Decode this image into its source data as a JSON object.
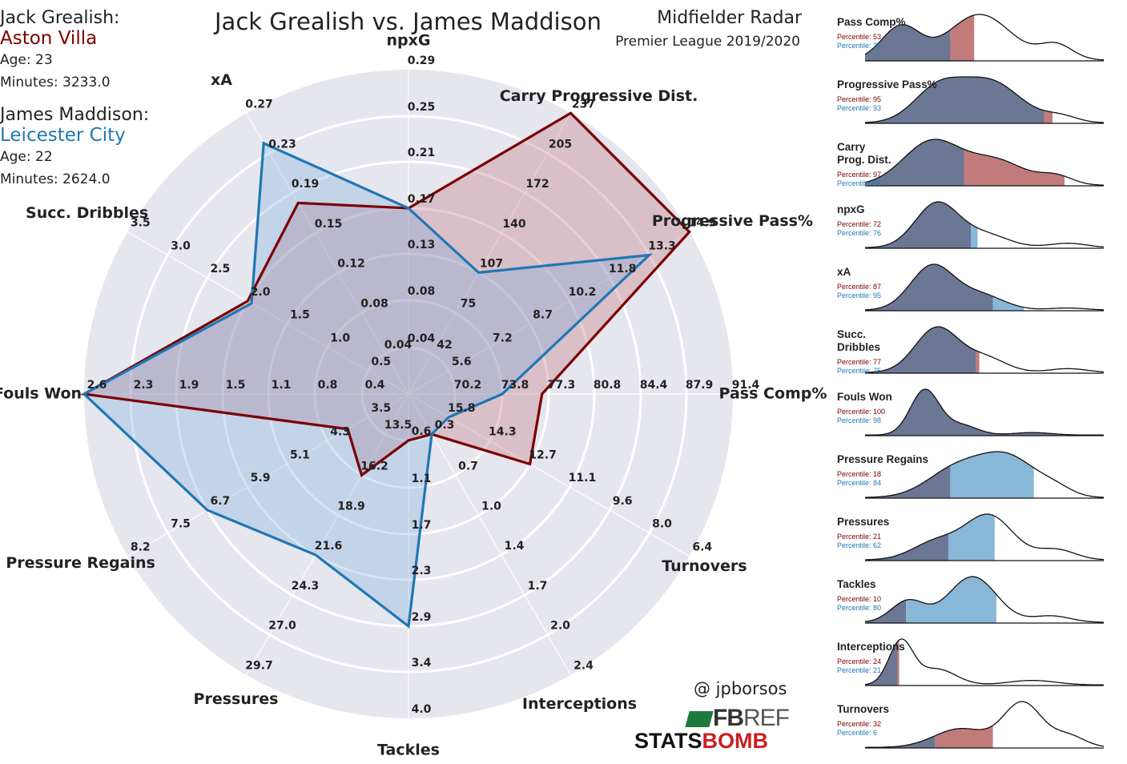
{
  "title": "Jack Grealish vs. James Maddison",
  "subtitle": "Midfielder Radar",
  "competition": "Premier League 2019/2020",
  "credit": "@ jpborsos",
  "logos": {
    "fbref_a": "FB",
    "fbref_b": "REF",
    "statsbomb_a": "STATS",
    "statsbomb_b": "BOMB"
  },
  "players": [
    {
      "name": "Jack Grealish:",
      "club": "Aston Villa",
      "age": "Age: 23",
      "minutes": "Minutes: 3233.0",
      "color": "#7b0000"
    },
    {
      "name": "James Maddison:",
      "club": "Leicester City",
      "age": "Age: 22",
      "minutes": "Minutes: 2624.0",
      "color": "#1f77b4"
    }
  ],
  "colors": {
    "grealish": "#7b0000",
    "maddison": "#1f77b4",
    "radar_bg": "#e6e6ee",
    "kde_fill": "#6b7794",
    "grealish_fill": "#c17b7b",
    "maddison_fill": "#88b7d8"
  },
  "chart_data": [
    {
      "type": "radar",
      "title": "Jack Grealish vs. James Maddison",
      "categories": [
        {
          "label": "npxG",
          "ticks": [
            "0.04",
            "0.08",
            "0.13",
            "0.17",
            "0.21",
            "0.25",
            "0.29"
          ]
        },
        {
          "label": "Carry Progressive Dist.",
          "ticks": [
            "42",
            "75",
            "107",
            "140",
            "172",
            "205",
            "237"
          ]
        },
        {
          "label": "Progressive Pass%",
          "ticks": [
            "5.6",
            "7.2",
            "8.7",
            "10.2",
            "11.8",
            "13.3",
            "14.9"
          ]
        },
        {
          "label": "Pass Comp%",
          "ticks": [
            "70.2",
            "73.8",
            "77.3",
            "80.8",
            "84.4",
            "87.9",
            "91.4"
          ]
        },
        {
          "label": "Turnovers",
          "ticks": [
            "15.8",
            "14.3",
            "12.7",
            "11.1",
            "9.6",
            "8.0",
            "6.4"
          ]
        },
        {
          "label": "Interceptions",
          "ticks": [
            "0.3",
            "0.7",
            "1.0",
            "1.4",
            "1.7",
            "2.0",
            "2.4"
          ]
        },
        {
          "label": "Tackles",
          "ticks": [
            "0.6",
            "1.1",
            "1.7",
            "2.3",
            "2.9",
            "3.4",
            "4.0"
          ]
        },
        {
          "label": "Pressures",
          "ticks": [
            "13.5",
            "16.2",
            "18.9",
            "21.6",
            "24.3",
            "27.0",
            "29.7"
          ]
        },
        {
          "label": "Pressure Regains",
          "ticks": [
            "3.5",
            "4.3",
            "5.1",
            "5.9",
            "6.7",
            "7.5",
            "8.2"
          ]
        },
        {
          "label": "Fouls Won",
          "ticks": [
            "0.4",
            "0.8",
            "1.1",
            "1.5",
            "1.9",
            "2.3",
            "2.6"
          ]
        },
        {
          "label": "Succ. Dribbles",
          "ticks": [
            "0.5",
            "1.0",
            "1.5",
            "2.0",
            "2.5",
            "3.0",
            "3.5"
          ]
        },
        {
          "label": "xA",
          "ticks": [
            "0.04",
            "0.08",
            "0.12",
            "0.15",
            "0.19",
            "0.23",
            "0.27"
          ]
        }
      ],
      "axis_min": [
        "0.00",
        "10",
        "4.0",
        "66.7",
        "17.4",
        "0.0",
        "0.0",
        "10.8",
        "2.7",
        "0.0",
        "0.0",
        "0.00"
      ],
      "series": [
        {
          "name": "Jack Grealish",
          "values": [
            0.17,
            237,
            14.9,
            76.8,
            12.7,
            0.3,
            0.6,
            16.2,
            3.9,
            2.6,
            2.0,
            0.18
          ]
        },
        {
          "name": "James Maddison",
          "values": [
            0.17,
            107,
            13.3,
            73.8,
            15.8,
            0.3,
            2.9,
            21.6,
            6.7,
            2.6,
            1.95,
            0.24
          ]
        }
      ]
    },
    {
      "type": "area",
      "panels": [
        {
          "label": "Pass Comp%",
          "grealish": "Percentile: 53",
          "maddison": "Percentile: 37"
        },
        {
          "label": "Progressive Pass%",
          "grealish": "Percentile: 95",
          "maddison": "Percentile: 93"
        },
        {
          "label": "Carry\nProg. Dist.",
          "grealish": "Percentile: 97",
          "maddison": "Percentile: 55"
        },
        {
          "label": "npxG",
          "grealish": "Percentile: 72",
          "maddison": "Percentile: 76"
        },
        {
          "label": "xA",
          "grealish": "Percentile: 87",
          "maddison": "Percentile: 95"
        },
        {
          "label": "Succ.\nDribbles",
          "grealish": "Percentile: 77",
          "maddison": "Percentile: 75"
        },
        {
          "label": "Fouls Won",
          "grealish": "Percentile: 100",
          "maddison": "Percentile: 98"
        },
        {
          "label": "Pressure Regains",
          "grealish": "Percentile: 18",
          "maddison": "Percentile: 84"
        },
        {
          "label": "Pressures",
          "grealish": "Percentile: 21",
          "maddison": "Percentile: 62"
        },
        {
          "label": "Tackles",
          "grealish": "Percentile: 10",
          "maddison": "Percentile: 80"
        },
        {
          "label": "Interceptions",
          "grealish": "Percentile: 24",
          "maddison": "Percentile: 21"
        },
        {
          "label": "Turnovers",
          "grealish": "Percentile: 32",
          "maddison": "Percentile: 6"
        }
      ]
    }
  ]
}
